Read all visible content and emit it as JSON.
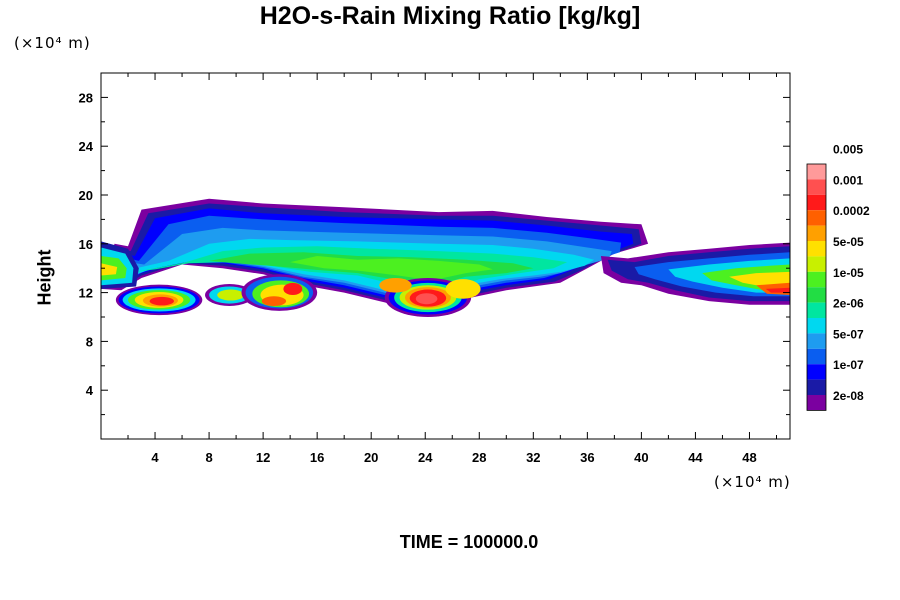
{
  "chart_data": {
    "type": "heatmap",
    "title": "H2O-s-Rain Mixing Ratio [kg/kg]",
    "xlabel": "",
    "ylabel": "Height",
    "x_unit": "(×10⁴ m)",
    "y_unit": "(×10⁴ m)",
    "footer": "TIME = 100000.0",
    "xlim": [
      0,
      51
    ],
    "ylim": [
      0,
      30
    ],
    "x_ticks": [
      4,
      8,
      12,
      16,
      20,
      24,
      28,
      32,
      36,
      40,
      44,
      48
    ],
    "y_ticks": [
      4,
      8,
      12,
      16,
      20,
      24,
      28
    ],
    "colorbar": {
      "levels": [
        "2e-08",
        "1e-07",
        "5e-07",
        "2e-06",
        "1e-05",
        "5e-05",
        "0.0002",
        "0.001",
        "0.005"
      ],
      "colors": [
        "#7b00a0",
        "#1a1aa6",
        "#0000ff",
        "#0a5ef0",
        "#1e9cf0",
        "#00d8f0",
        "#00e6a0",
        "#22dd44",
        "#4cf020",
        "#c8f000",
        "#ffe000",
        "#ffa000",
        "#ff6000",
        "#ff1a1a",
        "#ff5050",
        "#ff9a9a"
      ]
    },
    "cloud_regions": [
      {
        "label": "main upper cloud layer",
        "x_range": [
          3,
          40
        ],
        "height_range": [
          12,
          19.5
        ],
        "peak_level": "5e-05"
      },
      {
        "label": "left edge cloud",
        "x_range": [
          0,
          3
        ],
        "height_range": [
          12,
          16
        ],
        "peak_level": "5e-05"
      },
      {
        "label": "lower left rain core",
        "x_range": [
          1.5,
          7
        ],
        "height_range": [
          10.5,
          12.5
        ],
        "peak_level": "0.001"
      },
      {
        "label": "lower center cells",
        "x_range": [
          8,
          16
        ],
        "height_range": [
          10.5,
          13.5
        ],
        "peak_level": "0.001"
      },
      {
        "label": "central rain core",
        "x_range": [
          22,
          26
        ],
        "height_range": [
          10,
          12.5
        ],
        "peak_level": "0.005"
      },
      {
        "label": "right cloud band",
        "x_range": [
          37,
          51
        ],
        "height_range": [
          11,
          16
        ],
        "peak_level": "0.001"
      }
    ]
  }
}
